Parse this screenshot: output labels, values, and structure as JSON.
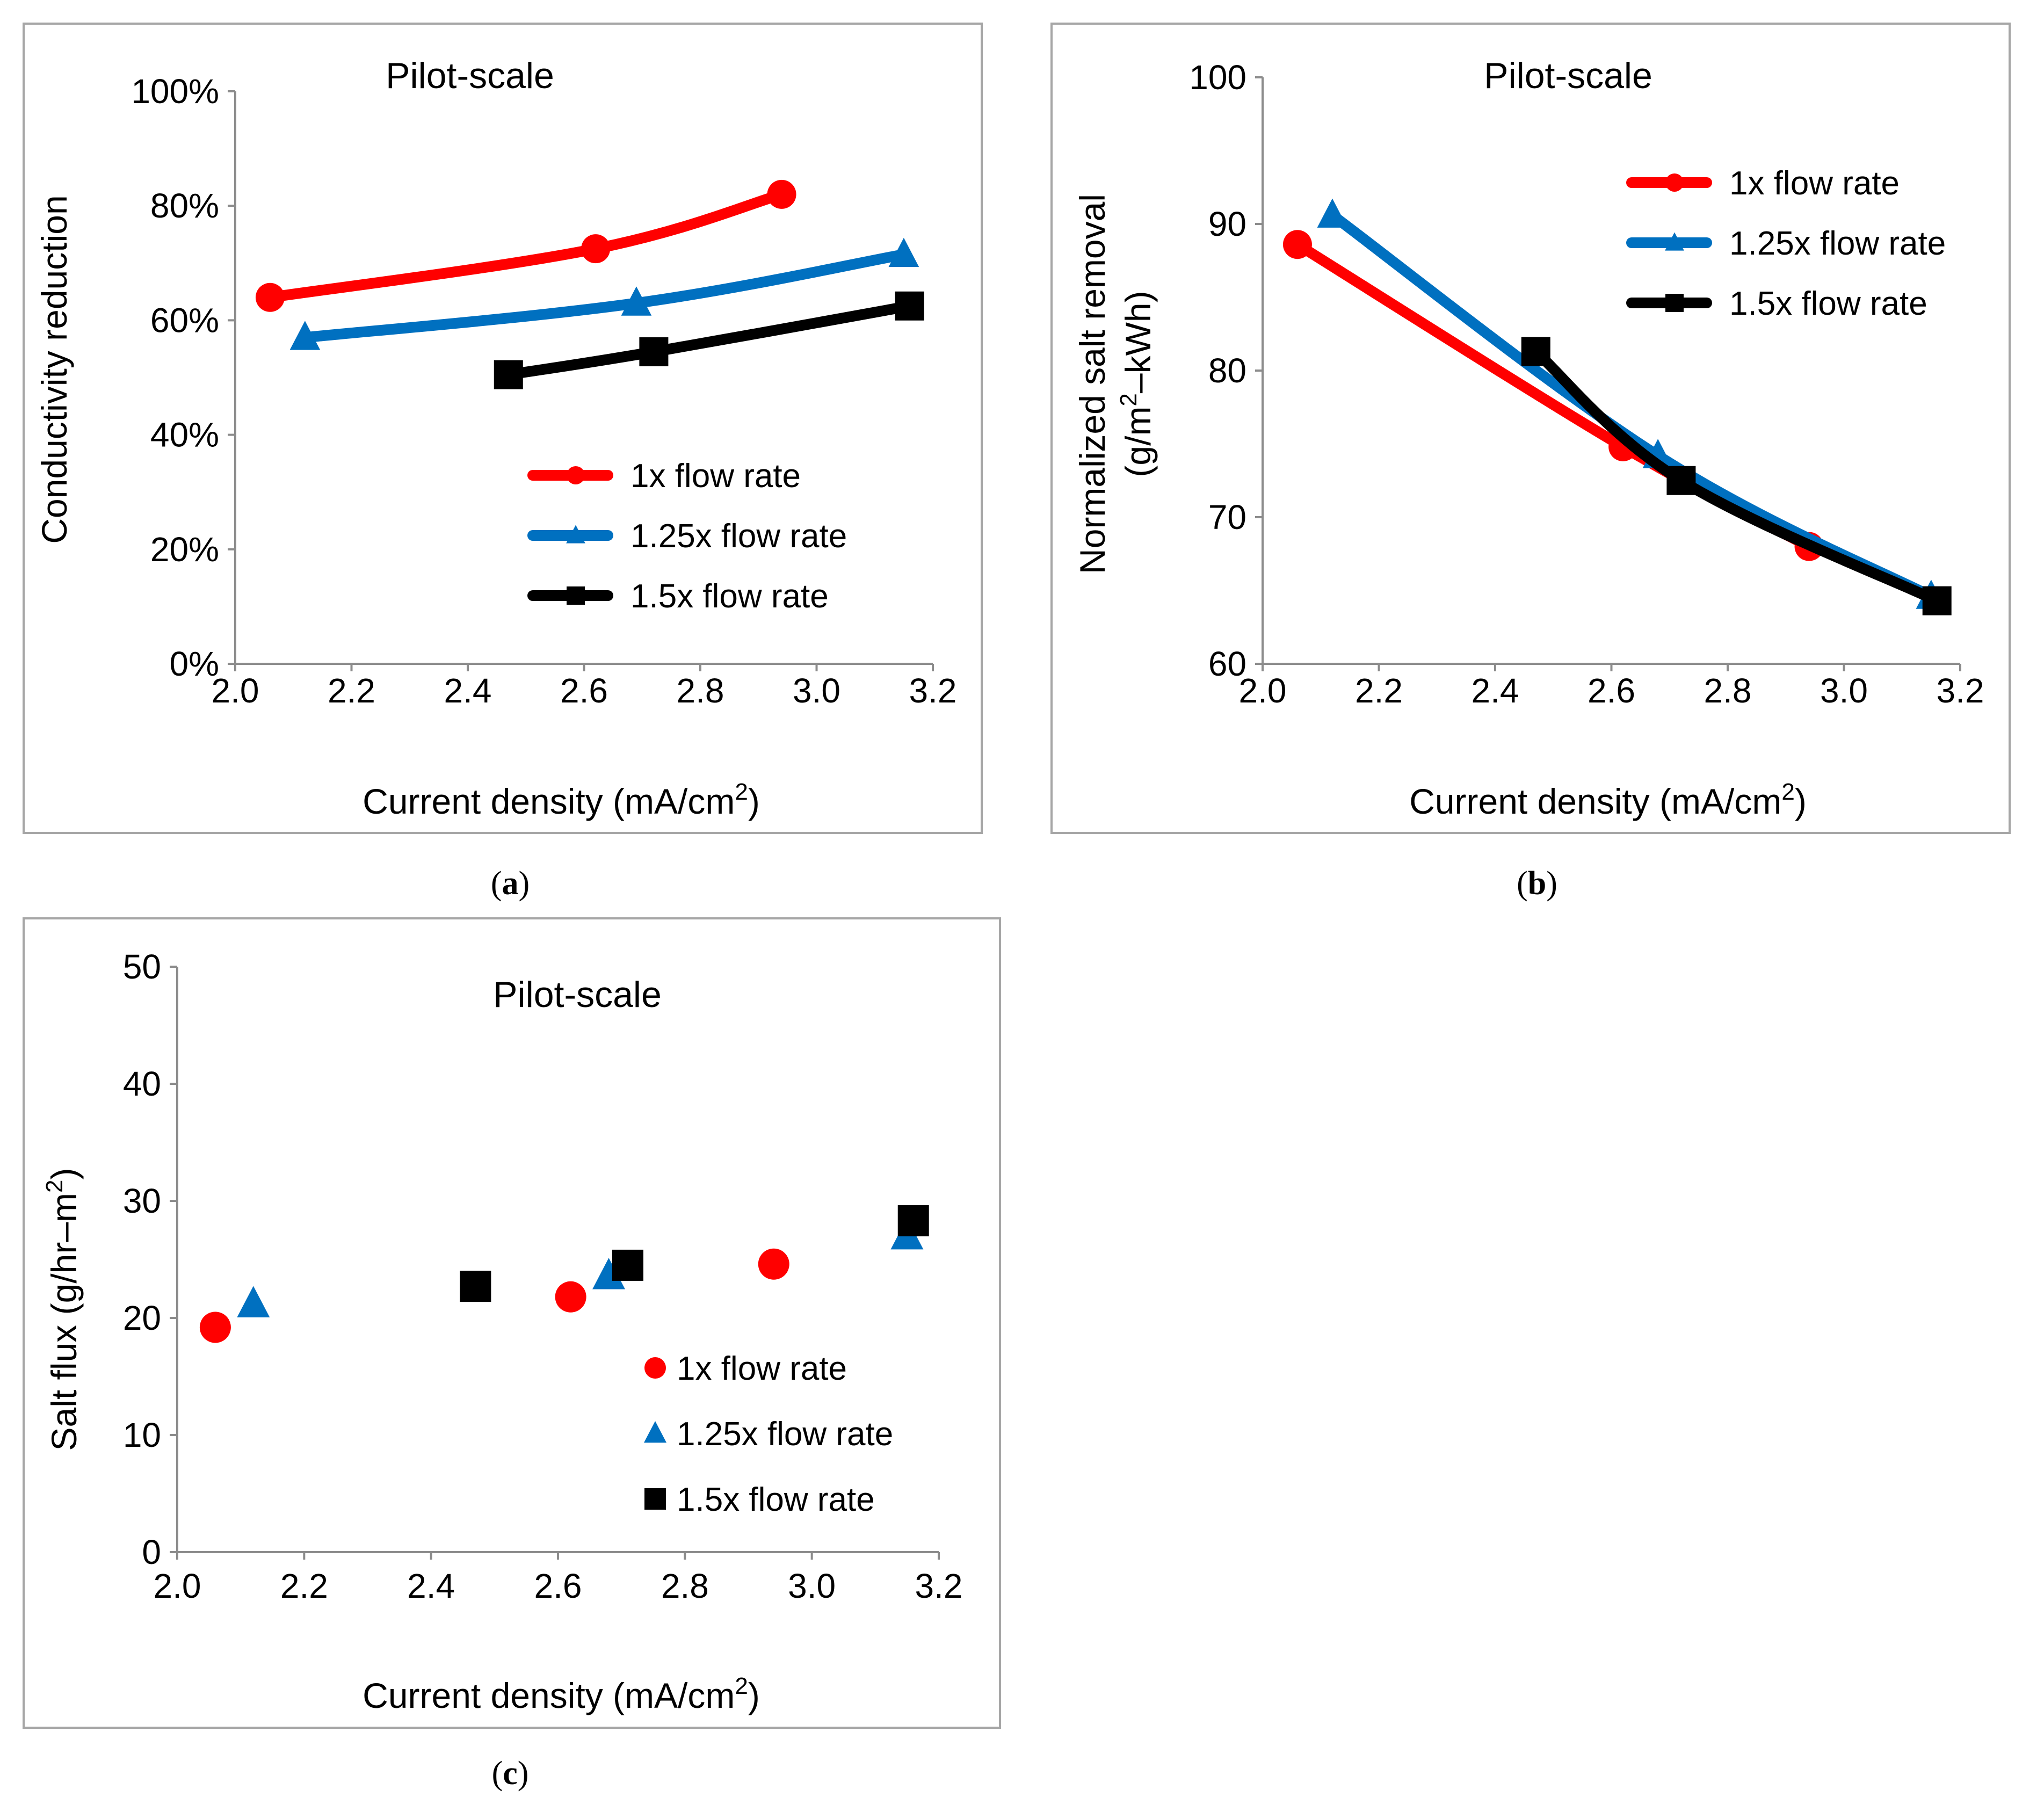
{
  "colors": {
    "s1": "#ff0000",
    "s125": "#0070c0",
    "s15": "#000000"
  },
  "chart_data": [
    {
      "id": "a",
      "type": "line",
      "caption": "a",
      "title": "Pilot-scale",
      "xlabel": "Current density (mA/cm",
      "xlabel_sup": "2",
      "xlabel_end": ")",
      "ylabel": "Conductivity reduction",
      "xlim": [
        2.0,
        3.2
      ],
      "ylim": [
        0,
        100
      ],
      "xticks": [
        "2.0",
        "2.2",
        "2.4",
        "2.6",
        "2.8",
        "3.0",
        "3.2"
      ],
      "yticks": [
        "0%",
        "20%",
        "40%",
        "60%",
        "80%",
        "100%"
      ],
      "grid": false,
      "legend_position": "lower-right",
      "series": [
        {
          "name": "1x flow rate",
          "marker": "circle",
          "color_key": "s1",
          "x": [
            2.06,
            2.62,
            2.94
          ],
          "y": [
            64,
            72.5,
            82
          ]
        },
        {
          "name": "1.25x flow rate",
          "marker": "triangle",
          "color_key": "s125",
          "x": [
            2.12,
            2.69,
            3.15
          ],
          "y": [
            57,
            63,
            71.5
          ]
        },
        {
          "name": "1.5x flow rate",
          "marker": "square",
          "color_key": "s15",
          "x": [
            2.47,
            2.72,
            3.16
          ],
          "y": [
            50.5,
            54.5,
            62.5
          ]
        }
      ]
    },
    {
      "id": "b",
      "type": "line",
      "caption": "b",
      "title": "Pilot-scale",
      "xlabel": "Current density (mA/cm",
      "xlabel_sup": "2",
      "xlabel_end": ")",
      "ylabel": "Normalized salt removal",
      "ylabel2": "(g/m",
      "ylabel2_sup": "2",
      "ylabel2_end": "–kWh)",
      "xlim": [
        2.0,
        3.2
      ],
      "ylim": [
        60,
        100
      ],
      "xticks": [
        "2.0",
        "2.2",
        "2.4",
        "2.6",
        "2.8",
        "3.0",
        "3.2"
      ],
      "yticks": [
        "60",
        "70",
        "80",
        "90",
        "100"
      ],
      "grid": false,
      "legend_position": "top-right",
      "series": [
        {
          "name": "1x flow rate",
          "marker": "circle",
          "color_key": "s1",
          "x": [
            2.06,
            2.62,
            2.94
          ],
          "y": [
            88.6,
            74.8,
            68
          ]
        },
        {
          "name": "1.25x flow rate",
          "marker": "triangle",
          "color_key": "s125",
          "x": [
            2.12,
            2.68,
            3.15
          ],
          "y": [
            90.6,
            74.2,
            64.6
          ]
        },
        {
          "name": "1.5x flow rate",
          "marker": "square",
          "color_key": "s15",
          "x": [
            2.47,
            2.72,
            3.16
          ],
          "y": [
            81.3,
            72.5,
            64.3
          ]
        }
      ]
    },
    {
      "id": "c",
      "type": "scatter",
      "caption": "c",
      "title": "Pilot-scale",
      "xlabel": "Current density (mA/cm",
      "xlabel_sup": "2",
      "xlabel_end": ")",
      "ylabel": "Salt flux (g/hr–m",
      "ylabel_sup": "2",
      "ylabel_end": ")",
      "xlim": [
        2.0,
        3.2
      ],
      "ylim": [
        0,
        50
      ],
      "xticks": [
        "2.0",
        "2.2",
        "2.4",
        "2.6",
        "2.8",
        "3.0",
        "3.2"
      ],
      "yticks": [
        "0",
        "10",
        "20",
        "30",
        "40",
        "50"
      ],
      "grid": false,
      "legend_position": "lower-right",
      "series": [
        {
          "name": "1x flow rate",
          "marker": "circle",
          "color_key": "s1",
          "x": [
            2.06,
            2.62,
            2.94
          ],
          "y": [
            19.2,
            21.8,
            24.6
          ]
        },
        {
          "name": "1.25x flow rate",
          "marker": "triangle",
          "color_key": "s125",
          "x": [
            2.12,
            2.68,
            3.15
          ],
          "y": [
            21.2,
            23.6,
            27
          ]
        },
        {
          "name": "1.5x flow rate",
          "marker": "square",
          "color_key": "s15",
          "x": [
            2.47,
            2.71,
            3.16
          ],
          "y": [
            22.7,
            24.5,
            28.3
          ]
        }
      ]
    }
  ]
}
